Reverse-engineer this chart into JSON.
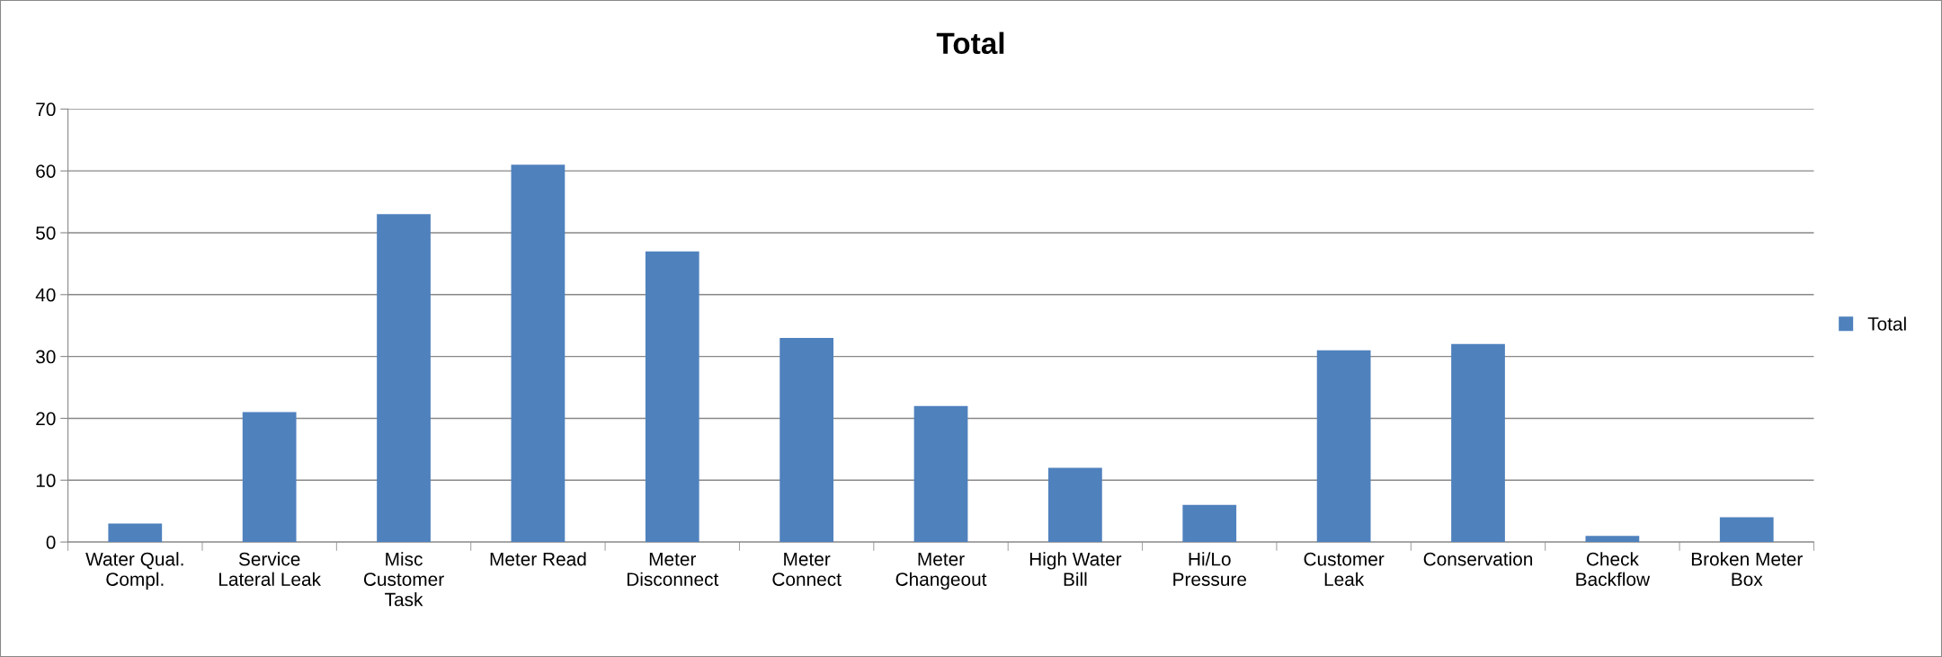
{
  "chart_data": {
    "type": "bar",
    "title": "Total",
    "categories": [
      "Water Qual. Compl.",
      "Service Lateral Leak",
      "Misc Customer Task",
      "Meter Read",
      "Meter Disconnect",
      "Meter Connect",
      "Meter Changeout",
      "High Water Bill",
      "Hi/Lo Pressure",
      "Customer Leak",
      "Conservation",
      "Check Backflow",
      "Broken Meter Box"
    ],
    "series": [
      {
        "name": "Total",
        "color": "#4f81bd",
        "values": [
          3,
          21,
          53,
          61,
          47,
          33,
          22,
          12,
          6,
          31,
          32,
          1,
          4
        ]
      }
    ],
    "ylim": [
      0,
      70
    ],
    "yticks": [
      0,
      10,
      20,
      30,
      40,
      50,
      60,
      70
    ],
    "grid": "y",
    "legend": "right"
  }
}
